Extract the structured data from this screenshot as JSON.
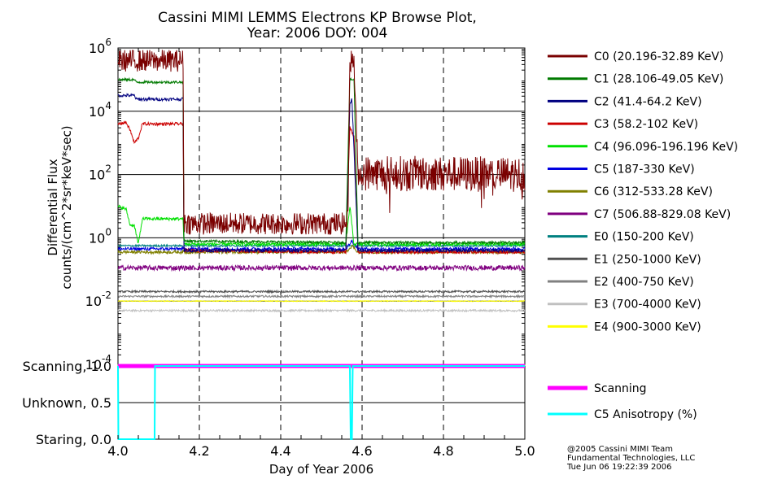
{
  "chart_data": {
    "type": "line",
    "title_line1": "Cassini MIMI LEMMS Electrons KP Browse Plot,",
    "title_line2": "Year: 2006 DOY: 004",
    "xlabel": "Day of Year 2006",
    "ylabel_line1": "Differential Flux",
    "ylabel_line2": "counts/(cm^2*sr*keV*sec)",
    "xlim": [
      4.0,
      5.0
    ],
    "ylim_log10": [
      -4,
      6
    ],
    "x_ticks": [
      "4.0",
      "4.2",
      "4.4",
      "4.6",
      "4.8",
      "5.0"
    ],
    "x_tick_values": [
      4.0,
      4.2,
      4.4,
      4.6,
      4.8,
      5.0
    ],
    "y_ticks": [
      {
        "base": "10",
        "exp": "6",
        "log": 6
      },
      {
        "base": "10",
        "exp": "4",
        "log": 4
      },
      {
        "base": "10",
        "exp": "2",
        "log": 2
      },
      {
        "base": "10",
        "exp": "0",
        "log": 0
      },
      {
        "base": "10",
        "exp": "-2",
        "log": -2
      },
      {
        "base": "10",
        "exp": "-4",
        "log": -4
      }
    ],
    "series": [
      {
        "name": "C0 (20.196-32.89 KeV)",
        "color": "#7a0000",
        "noise": 0.35,
        "points": [
          [
            4.0,
            5.6
          ],
          [
            4.16,
            5.6
          ],
          [
            4.162,
            0.5
          ],
          [
            4.18,
            0.45
          ],
          [
            4.56,
            0.45
          ],
          [
            4.565,
            0.6
          ],
          [
            4.57,
            5.6
          ],
          [
            4.58,
            5.6
          ],
          [
            4.59,
            2.0
          ],
          [
            4.61,
            2.05
          ],
          [
            5.0,
            2.0
          ]
        ]
      },
      {
        "name": "C1 (28.106-49.05 KeV)",
        "color": "#007a00",
        "noise": 0.04,
        "points": [
          [
            4.0,
            5.0
          ],
          [
            4.04,
            5.0
          ],
          [
            4.045,
            4.92
          ],
          [
            4.16,
            4.92
          ],
          [
            4.162,
            -0.1
          ],
          [
            4.56,
            -0.15
          ],
          [
            4.57,
            5.0
          ],
          [
            4.58,
            5.0
          ],
          [
            4.59,
            -0.15
          ],
          [
            5.0,
            -0.15
          ]
        ]
      },
      {
        "name": "C2 (41.4-64.2 KeV)",
        "color": "#000080",
        "noise": 0.05,
        "points": [
          [
            4.0,
            4.5
          ],
          [
            4.04,
            4.5
          ],
          [
            4.045,
            4.38
          ],
          [
            4.16,
            4.38
          ],
          [
            4.162,
            -0.4
          ],
          [
            4.56,
            -0.4
          ],
          [
            4.57,
            4.2
          ],
          [
            4.575,
            4.4
          ],
          [
            4.59,
            -0.4
          ],
          [
            5.0,
            -0.4
          ]
        ]
      },
      {
        "name": "C3 (58.2-102 KeV)",
        "color": "#cc0000",
        "noise": 0.05,
        "points": [
          [
            4.0,
            3.6
          ],
          [
            4.02,
            3.65
          ],
          [
            4.03,
            3.4
          ],
          [
            4.04,
            3.0
          ],
          [
            4.05,
            3.15
          ],
          [
            4.06,
            3.6
          ],
          [
            4.16,
            3.6
          ],
          [
            4.162,
            -0.4
          ],
          [
            4.56,
            -0.45
          ],
          [
            4.57,
            3.5
          ],
          [
            4.58,
            3.2
          ],
          [
            4.59,
            -0.45
          ],
          [
            5.0,
            -0.45
          ]
        ]
      },
      {
        "name": "C4 (96.096-196.196 KeV)",
        "color": "#00e000",
        "noise": 0.05,
        "points": [
          [
            4.0,
            1.0
          ],
          [
            4.02,
            0.9
          ],
          [
            4.03,
            0.4
          ],
          [
            4.04,
            0.4
          ],
          [
            4.05,
            -0.2
          ],
          [
            4.06,
            0.6
          ],
          [
            4.16,
            0.6
          ],
          [
            4.162,
            -0.2
          ],
          [
            4.56,
            -0.2
          ],
          [
            4.57,
            1.0
          ],
          [
            4.58,
            -0.2
          ],
          [
            5.0,
            -0.2
          ]
        ]
      },
      {
        "name": "C5 (187-330 KeV)",
        "color": "#0000e0",
        "noise": 0.05,
        "points": [
          [
            4.0,
            -0.35
          ],
          [
            4.56,
            -0.35
          ],
          [
            4.575,
            -0.1
          ],
          [
            4.59,
            -0.35
          ],
          [
            5.0,
            -0.35
          ]
        ]
      },
      {
        "name": "C6 (312-533.28 KeV)",
        "color": "#808000",
        "noise": 0.05,
        "points": [
          [
            4.0,
            -0.45
          ],
          [
            4.56,
            -0.45
          ],
          [
            4.575,
            -0.25
          ],
          [
            4.59,
            -0.45
          ],
          [
            5.0,
            -0.45
          ]
        ]
      },
      {
        "name": "C7 (506.88-829.08 KeV)",
        "color": "#800080",
        "noise": 0.08,
        "points": [
          [
            4.0,
            -0.95
          ],
          [
            5.0,
            -0.95
          ]
        ]
      },
      {
        "name": "E0 (150-200 KeV)",
        "color": "#008080",
        "noise": 0.03,
        "points": [
          [
            4.0,
            -0.25
          ],
          [
            5.0,
            -0.25
          ]
        ]
      },
      {
        "name": "E1 (250-1000 KeV)",
        "color": "#505050",
        "noise": 0.03,
        "points": [
          [
            4.0,
            -1.7
          ],
          [
            5.0,
            -1.7
          ]
        ]
      },
      {
        "name": "E2 (400-750 KeV)",
        "color": "#808080",
        "noise": 0.03,
        "points": [
          [
            4.0,
            -1.85
          ],
          [
            5.0,
            -1.85
          ]
        ]
      },
      {
        "name": "E3 (700-4000 KeV)",
        "color": "#c0c0c0",
        "noise": 0.03,
        "points": [
          [
            4.0,
            -2.3
          ],
          [
            5.0,
            -2.3
          ]
        ]
      },
      {
        "name": "E4 (900-3000 KeV)",
        "color": "#ffff00",
        "noise": 0.015,
        "points": [
          [
            4.0,
            -2.0
          ],
          [
            5.0,
            -2.0
          ]
        ]
      }
    ],
    "lower_panel": {
      "y_ticks": [
        {
          "label": "Scanning, 1.0",
          "value": 1.0
        },
        {
          "label": "Unknown, 0.5",
          "value": 0.5
        },
        {
          "label": "Staring, 0.0",
          "value": 0.0
        }
      ],
      "ylim": [
        0.0,
        1.0
      ],
      "series": [
        {
          "name": "Scanning",
          "color": "#ff00ff",
          "points": [
            [
              4.0,
              1.0
            ],
            [
              5.0,
              1.0
            ]
          ]
        },
        {
          "name": "C5 Anisotropy (%)",
          "color": "#00ffff",
          "points": [
            [
              4.0,
              1.0
            ],
            [
              4.001,
              0.0
            ],
            [
              4.09,
              0.0
            ],
            [
              4.091,
              1.0
            ],
            [
              4.57,
              1.0
            ],
            [
              4.572,
              0.0
            ],
            [
              4.575,
              0.0
            ],
            [
              4.577,
              1.0
            ],
            [
              5.0,
              1.0
            ]
          ]
        }
      ]
    },
    "credit": {
      "line1": "@2005 Cassini MIMI Team",
      "line2": "Fundamental Technologies, LLC",
      "line3": "Tue Jun 06 19:22:39 2006"
    }
  }
}
